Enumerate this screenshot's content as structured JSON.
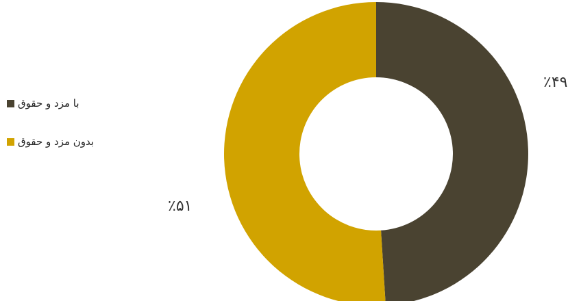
{
  "chart_data": {
    "type": "pie",
    "variant": "donut",
    "title": "",
    "series": [
      {
        "name": "با مزد و حقوق",
        "value": 49,
        "label": "٪۴۹",
        "color": "#4a4331"
      },
      {
        "name": "بدون مزد و حقوق",
        "value": 51,
        "label": "٪۵۱",
        "color": "#d1a300"
      }
    ],
    "legend": {
      "position": "left"
    }
  }
}
